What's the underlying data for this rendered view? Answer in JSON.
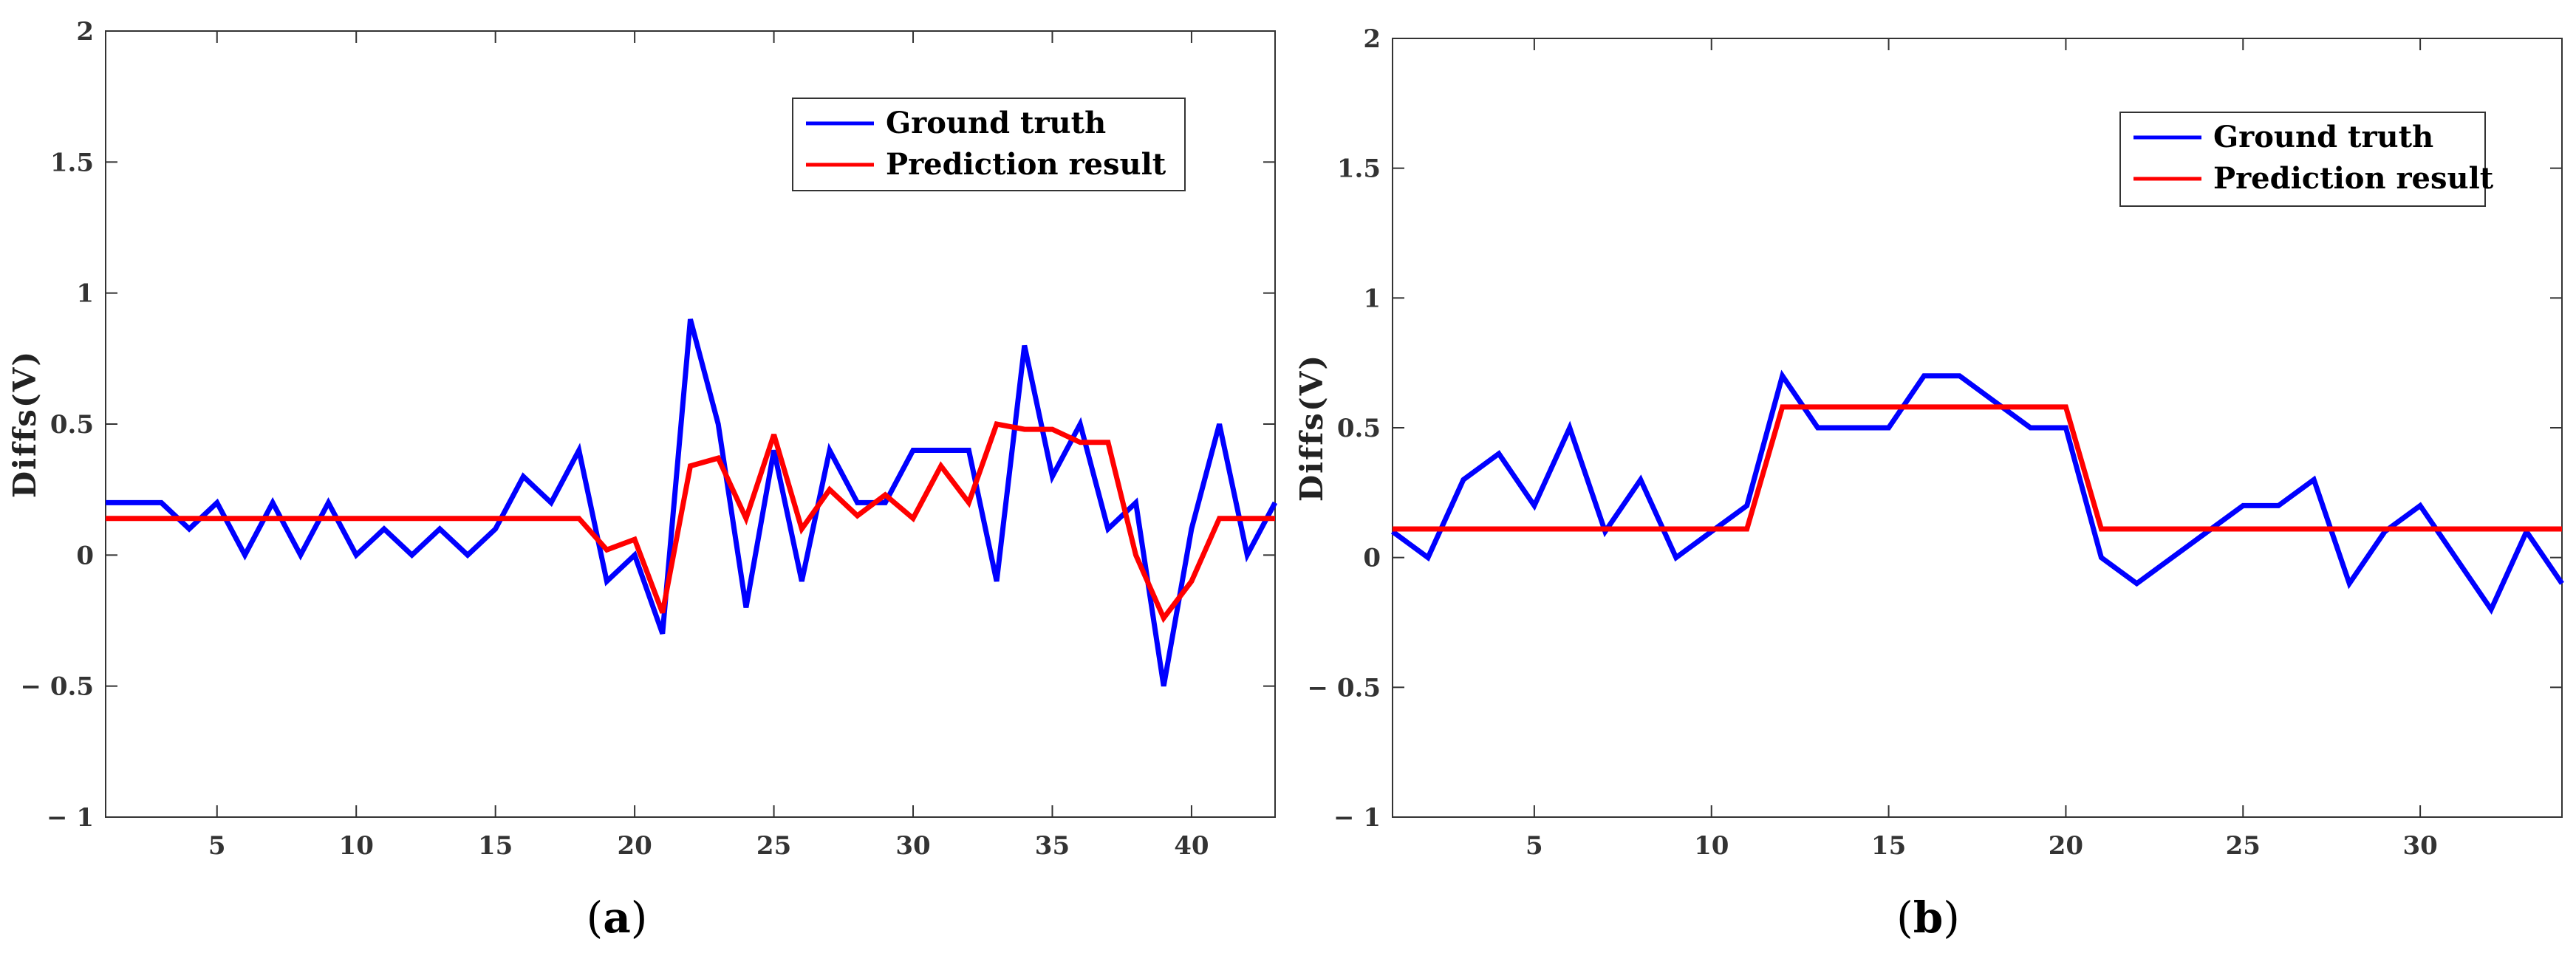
{
  "chart_data": [
    {
      "type": "line",
      "ylabel": "Diffs(V)",
      "xlabel": "",
      "caption_open": "(",
      "caption_letter": "a",
      "caption_close": ")",
      "xlim": [
        1,
        43
      ],
      "ylim": [
        -1,
        2
      ],
      "xticks": [
        5,
        10,
        15,
        20,
        25,
        30,
        35,
        40
      ],
      "yticks": [
        -1,
        -0.5,
        0,
        0.5,
        1,
        1.5,
        2
      ],
      "ytick_labels": [
        "− 1",
        "− 0.5",
        "0",
        "0.5",
        "1",
        "1.5",
        "2"
      ],
      "legend_position": "top-right",
      "x": [
        1,
        2,
        3,
        4,
        5,
        6,
        7,
        8,
        9,
        10,
        11,
        12,
        13,
        14,
        15,
        16,
        17,
        18,
        19,
        20,
        21,
        22,
        23,
        24,
        25,
        26,
        27,
        28,
        29,
        30,
        31,
        32,
        33,
        34,
        35,
        36,
        37,
        38,
        39,
        40,
        41,
        42,
        43
      ],
      "series": [
        {
          "name": "Ground truth",
          "color": "#0000ff",
          "values": [
            0.2,
            0.2,
            0.2,
            0.1,
            0.2,
            0,
            0.2,
            0,
            0.2,
            0,
            0.1,
            0,
            0.1,
            0,
            0.1,
            0.3,
            0.2,
            0.4,
            -0.1,
            0,
            -0.3,
            0.9,
            0.5,
            -0.2,
            0.4,
            -0.1,
            0.4,
            0.2,
            0.2,
            0.4,
            0.4,
            0.4,
            -0.1,
            0.8,
            0.3,
            0.5,
            0.1,
            0.2,
            -0.5,
            0.1,
            0.5,
            0,
            0.2
          ]
        },
        {
          "name": "Prediction result",
          "color": "#ff0000",
          "values": [
            0.14,
            0.14,
            0.14,
            0.14,
            0.14,
            0.14,
            0.14,
            0.14,
            0.14,
            0.14,
            0.14,
            0.14,
            0.14,
            0.14,
            0.14,
            0.14,
            0.14,
            0.14,
            0.02,
            0.06,
            -0.22,
            0.34,
            0.37,
            0.14,
            0.46,
            0.1,
            0.25,
            0.15,
            0.23,
            0.14,
            0.34,
            0.2,
            0.5,
            0.48,
            0.48,
            0.43,
            0.43,
            0,
            -0.24,
            -0.1,
            0.14,
            0.14,
            0.14
          ]
        }
      ]
    },
    {
      "type": "line",
      "ylabel": "Diffs(V)",
      "xlabel": "",
      "caption_open": "(",
      "caption_letter": "b",
      "caption_close": ")",
      "xlim": [
        1,
        34
      ],
      "ylim": [
        -1,
        2
      ],
      "xticks": [
        5,
        10,
        15,
        20,
        25,
        30
      ],
      "yticks": [
        -1,
        -0.5,
        0,
        0.5,
        1,
        1.5,
        2
      ],
      "ytick_labels": [
        "− 1",
        "− 0.5",
        "0",
        "0.5",
        "1",
        "1.5",
        "2"
      ],
      "legend_position": "top-right",
      "x": [
        1,
        2,
        3,
        4,
        5,
        6,
        7,
        8,
        9,
        10,
        11,
        12,
        13,
        14,
        15,
        16,
        17,
        18,
        19,
        20,
        21,
        22,
        23,
        24,
        25,
        26,
        27,
        28,
        29,
        30,
        31,
        32,
        33,
        34
      ],
      "series": [
        {
          "name": "Ground truth",
          "color": "#0000ff",
          "values": [
            0.1,
            0,
            0.3,
            0.4,
            0.2,
            0.5,
            0.1,
            0.3,
            0,
            0.1,
            0.2,
            0.7,
            0.5,
            0.5,
            0.5,
            0.7,
            0.7,
            0.6,
            0.5,
            0.5,
            0,
            -0.1,
            0,
            0.1,
            0.2,
            0.2,
            0.3,
            -0.1,
            0.1,
            0.2,
            0,
            -0.2,
            0.1,
            -0.1
          ]
        },
        {
          "name": "Prediction result",
          "color": "#ff0000",
          "values": [
            0.11,
            0.11,
            0.11,
            0.11,
            0.11,
            0.11,
            0.11,
            0.11,
            0.11,
            0.11,
            0.11,
            0.58,
            0.58,
            0.58,
            0.58,
            0.58,
            0.58,
            0.58,
            0.58,
            0.58,
            0.11,
            0.11,
            0.11,
            0.11,
            0.11,
            0.11,
            0.11,
            0.11,
            0.11,
            0.11,
            0.11,
            0.11,
            0.11,
            0.11
          ]
        }
      ]
    }
  ]
}
